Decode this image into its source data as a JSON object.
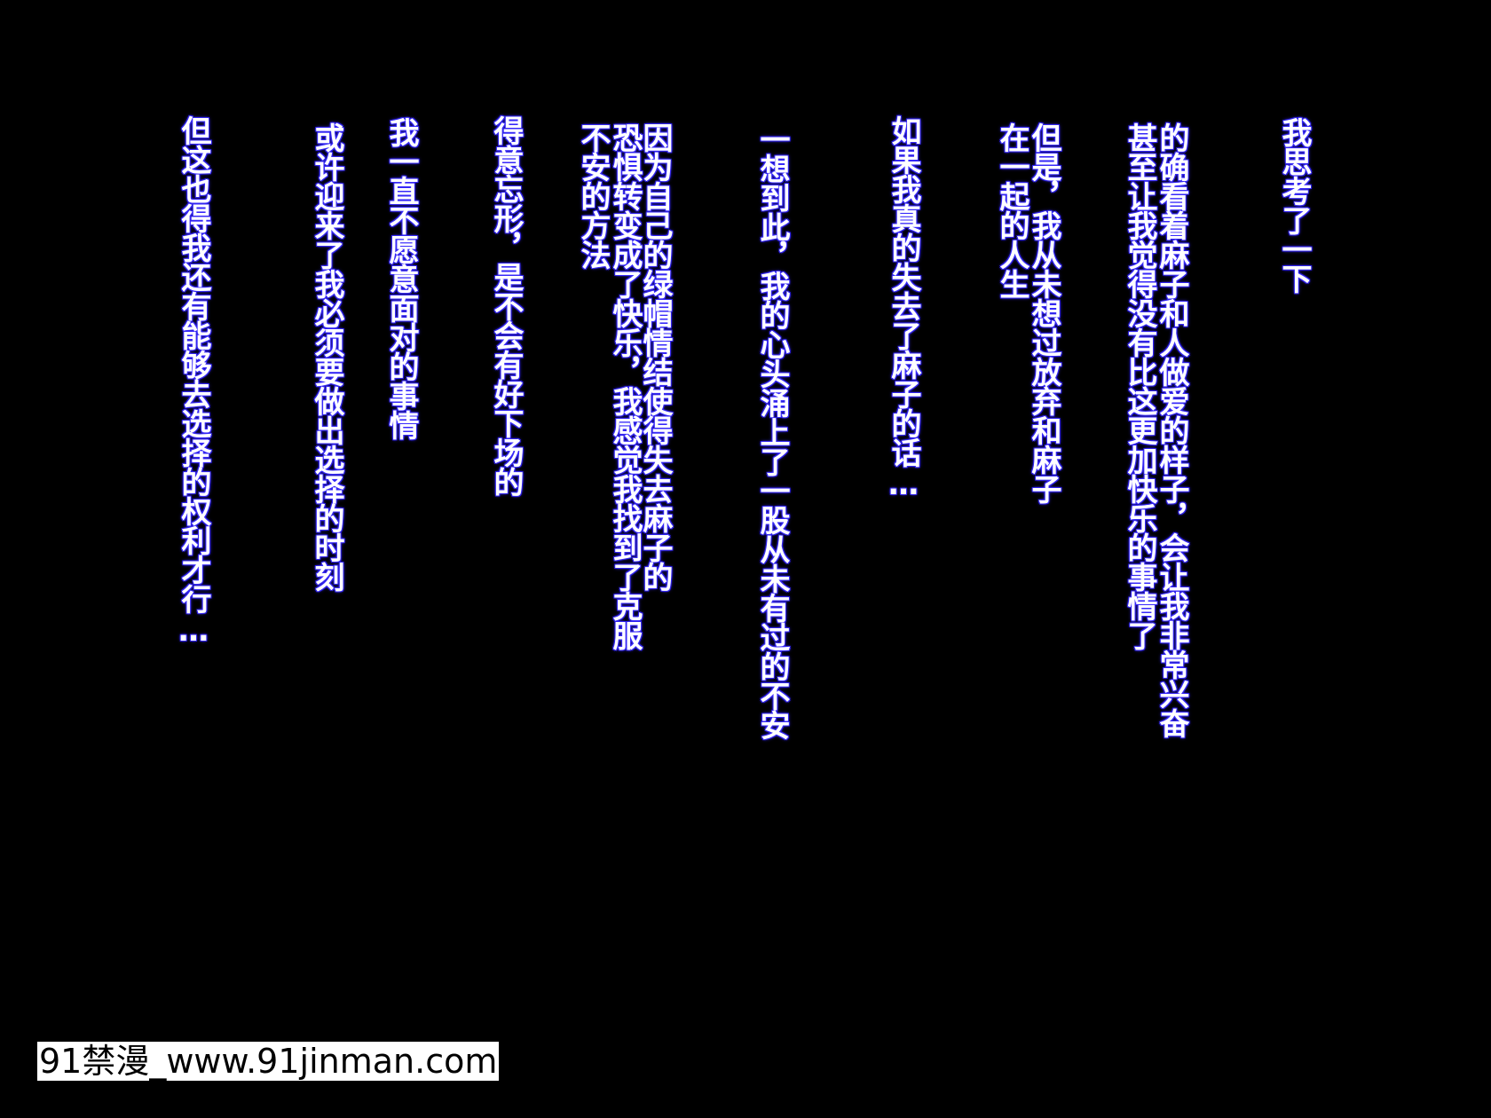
{
  "columns": [
    [
      "我思考了一下"
    ],
    [
      "的确看着麻子和人做爱的样子，会让我非常兴奋",
      "甚至让我觉得没有比这更加快乐的事情了"
    ],
    [
      "但是，我从未想过放弃和麻子",
      "在一起的人生"
    ],
    [
      "如果我真的失去了麻子的话…"
    ],
    [
      "一想到此，我的心头涌上了一股从未有过的不安"
    ],
    [
      "因为自己的绿帽情结使得失去麻子的",
      "恐惧转变成了快乐，我感觉我找到了克服",
      "不安的方法"
    ],
    [
      "得意忘形，是不会有好下场的"
    ],
    [
      "我一直不愿意面对的事情"
    ],
    [
      "或许迎来了我必须要做出选择的时刻"
    ],
    [
      "但这也得我还有能够去选择的权利才行…"
    ]
  ],
  "watermark": "91禁漫_www.91jinman.com",
  "colors": {
    "background": "#000000",
    "text": "#ffffff",
    "glow": "#3b2cff"
  }
}
